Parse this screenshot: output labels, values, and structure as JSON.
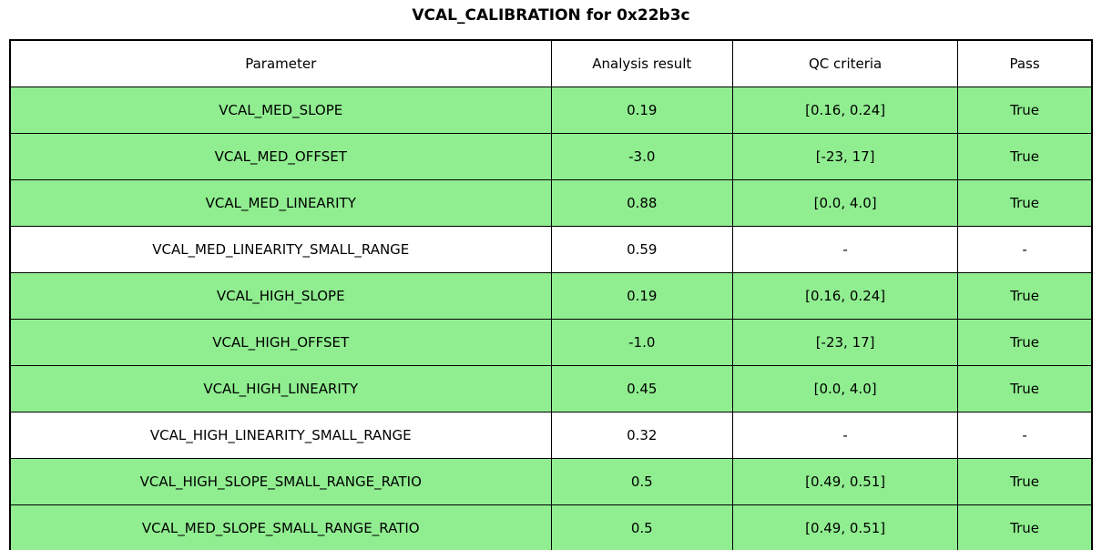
{
  "title": "VCAL_CALIBRATION for 0x22b3c",
  "colors": {
    "pass_row_green": "#90EE90",
    "na_row_white": "#ffffff",
    "border_black": "#000000"
  },
  "chart_data": {
    "type": "table",
    "title": "VCAL_CALIBRATION for 0x22b3c",
    "columns": [
      "Parameter",
      "Analysis result",
      "QC criteria",
      "Pass"
    ],
    "rows": [
      {
        "parameter": "VCAL_MED_SLOPE",
        "result": "0.19",
        "qc": "[0.16, 0.24]",
        "pass": "True",
        "highlight": true
      },
      {
        "parameter": "VCAL_MED_OFFSET",
        "result": "-3.0",
        "qc": "[-23, 17]",
        "pass": "True",
        "highlight": true
      },
      {
        "parameter": "VCAL_MED_LINEARITY",
        "result": "0.88",
        "qc": "[0.0, 4.0]",
        "pass": "True",
        "highlight": true
      },
      {
        "parameter": "VCAL_MED_LINEARITY_SMALL_RANGE",
        "result": "0.59",
        "qc": "-",
        "pass": "-",
        "highlight": false
      },
      {
        "parameter": "VCAL_HIGH_SLOPE",
        "result": "0.19",
        "qc": "[0.16, 0.24]",
        "pass": "True",
        "highlight": true
      },
      {
        "parameter": "VCAL_HIGH_OFFSET",
        "result": "-1.0",
        "qc": "[-23, 17]",
        "pass": "True",
        "highlight": true
      },
      {
        "parameter": "VCAL_HIGH_LINEARITY",
        "result": "0.45",
        "qc": "[0.0, 4.0]",
        "pass": "True",
        "highlight": true
      },
      {
        "parameter": "VCAL_HIGH_LINEARITY_SMALL_RANGE",
        "result": "0.32",
        "qc": "-",
        "pass": "-",
        "highlight": false
      },
      {
        "parameter": "VCAL_HIGH_SLOPE_SMALL_RANGE_RATIO",
        "result": "0.5",
        "qc": "[0.49, 0.51]",
        "pass": "True",
        "highlight": true
      },
      {
        "parameter": "VCAL_MED_SLOPE_SMALL_RANGE_RATIO",
        "result": "0.5",
        "qc": "[0.49, 0.51]",
        "pass": "True",
        "highlight": true
      }
    ]
  }
}
